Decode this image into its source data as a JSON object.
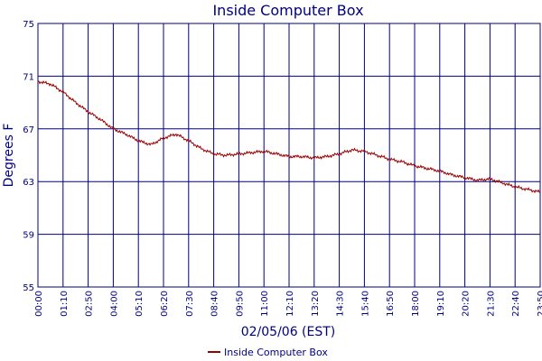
{
  "chart_data": {
    "type": "line",
    "title": "Inside Computer Box",
    "xlabel": "02/05/06 (EST)",
    "ylabel": "Degrees F",
    "grid": true,
    "legend_position": "bottom-center",
    "x_ticks": [
      "00:00",
      "01:10",
      "02:50",
      "04:00",
      "05:10",
      "06:20",
      "07:30",
      "08:40",
      "09:50",
      "11:00",
      "12:10",
      "13:20",
      "14:30",
      "15:40",
      "16:50",
      "18:00",
      "19:10",
      "20:20",
      "21:30",
      "22:40",
      "23:50"
    ],
    "y_ticks": [
      75,
      71,
      67,
      63,
      59,
      55
    ],
    "ylim": [
      55,
      75
    ],
    "colors": {
      "series": "#990000",
      "grid": "#00007f",
      "text": "#00007f"
    },
    "series": [
      {
        "name": "Inside Computer Box",
        "x_index": [
          0,
          0.5,
          1,
          1.5,
          2,
          2.5,
          3,
          3.5,
          4,
          4.5,
          5,
          5.5,
          6,
          6.5,
          7,
          7.5,
          8,
          8.5,
          9,
          9.5,
          10,
          10.5,
          11,
          11.5,
          12,
          12.5,
          13,
          13.5,
          14,
          14.5,
          15,
          15.5,
          16,
          16.5,
          17,
          17.5,
          18,
          18.5,
          19,
          19.5,
          20
        ],
        "values": [
          70.6,
          70.4,
          69.8,
          69.0,
          68.3,
          67.7,
          67.0,
          66.6,
          66.1,
          65.8,
          66.3,
          66.6,
          66.1,
          65.5,
          65.1,
          65.0,
          65.1,
          65.2,
          65.3,
          65.1,
          64.9,
          64.9,
          64.8,
          64.9,
          65.1,
          65.4,
          65.3,
          65.0,
          64.7,
          64.5,
          64.2,
          64.0,
          63.8,
          63.5,
          63.3,
          63.1,
          63.2,
          62.9,
          62.6,
          62.4,
          62.2
        ]
      }
    ]
  }
}
